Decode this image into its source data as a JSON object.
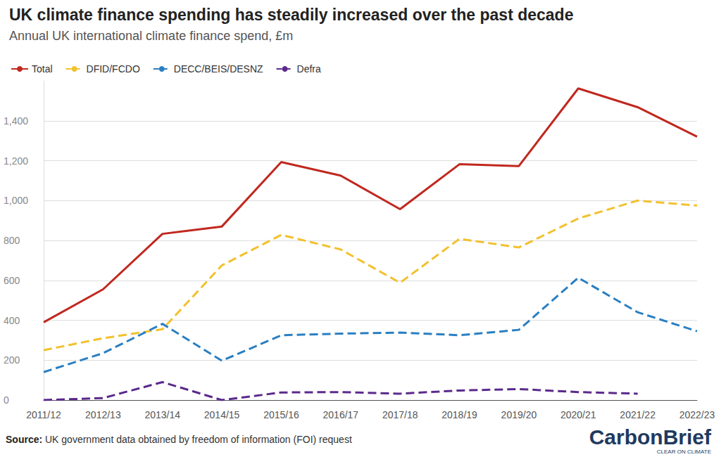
{
  "chart_data": {
    "type": "line",
    "title": "UK climate finance spending has steadily increased over the past decade",
    "subtitle": "Annual UK international climate finance spend, £m",
    "source_label": "Source:",
    "source": "UK government data obtained by freedom of information (FOI) request",
    "logo": "CarbonBrief",
    "logo_tagline": "CLEAR ON CLIMATE",
    "categories": [
      "2011/12",
      "2012/13",
      "2013/14",
      "2014/15",
      "2015/16",
      "2016/17",
      "2017/18",
      "2018/19",
      "2019/20",
      "2020/21",
      "2021/22",
      "2022/23"
    ],
    "series": [
      {
        "name": "Total",
        "color": "#c0281f",
        "line_style": "solid",
        "marker": "none",
        "values": [
          390,
          555,
          833,
          870,
          1193,
          1125,
          957,
          1182,
          1173,
          1562,
          1468,
          1320
        ]
      },
      {
        "name": "DFID/FCDO",
        "color": "#f2c12e",
        "line_style": "dashed",
        "marker": "none",
        "values": [
          250,
          310,
          355,
          675,
          828,
          755,
          588,
          808,
          765,
          910,
          1000,
          975
        ]
      },
      {
        "name": "DECC/BEIS/DESNZ",
        "color": "#2a7fc1",
        "line_style": "dashed",
        "marker": "none",
        "values": [
          140,
          235,
          382,
          197,
          325,
          333,
          338,
          325,
          352,
          613,
          440,
          345
        ]
      },
      {
        "name": "Defra",
        "color": "#5b2a8c",
        "line_style": "dashed",
        "marker": "none",
        "values": [
          0,
          10,
          90,
          0,
          38,
          40,
          32,
          48,
          55,
          40,
          32,
          null
        ]
      }
    ],
    "ylim": [
      0,
      1600
    ],
    "yticks": [
      0,
      200,
      400,
      600,
      800,
      {
        "value": 1000,
        "label": "1,000"
      },
      {
        "value": 1200,
        "label": "1,200"
      },
      {
        "value": 1400,
        "label": "1,400"
      }
    ],
    "grid": true,
    "legend": "top-left"
  }
}
